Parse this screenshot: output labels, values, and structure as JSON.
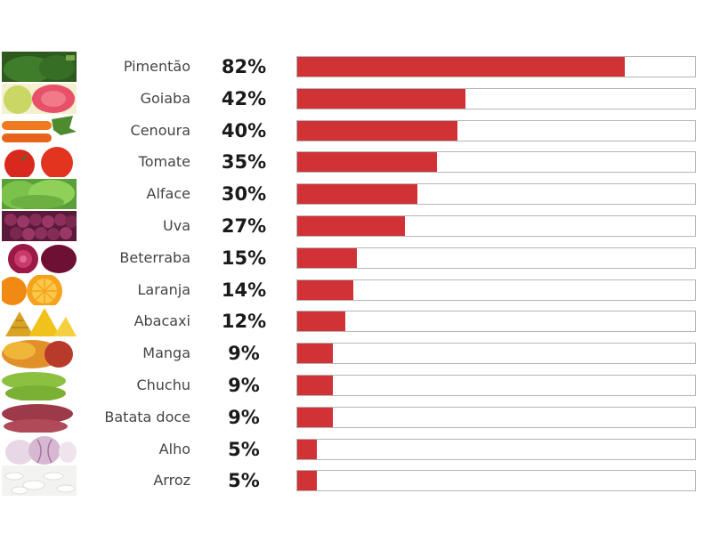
{
  "chart_data": {
    "type": "bar",
    "orientation": "horizontal",
    "categories": [
      "Pimentão",
      "Goiaba",
      "Cenoura",
      "Tomate",
      "Alface",
      "Uva",
      "Beterraba",
      "Laranja",
      "Abacaxi",
      "Manga",
      "Chuchu",
      "Batata doce",
      "Alho",
      "Arroz"
    ],
    "values": [
      82,
      42,
      40,
      35,
      30,
      27,
      15,
      14,
      12,
      9,
      9,
      9,
      5,
      5
    ],
    "value_labels": [
      "82%",
      "42%",
      "40%",
      "35%",
      "30%",
      "27%",
      "15%",
      "14%",
      "12%",
      "9%",
      "9%",
      "9%",
      "5%",
      "5%"
    ],
    "icons": [
      "bell-pepper-icon",
      "guava-icon",
      "carrot-icon",
      "tomato-icon",
      "lettuce-icon",
      "grape-icon",
      "beetroot-icon",
      "orange-icon",
      "pineapple-icon",
      "mango-icon",
      "chayote-icon",
      "sweet-potato-icon",
      "garlic-icon",
      "rice-icon"
    ],
    "xlim": [
      0,
      100
    ],
    "title": "",
    "xlabel": "",
    "ylabel": "",
    "grid": false,
    "legend": "none",
    "colors": {
      "bar": "#d03236",
      "track_border": "#b5b5b5"
    }
  }
}
